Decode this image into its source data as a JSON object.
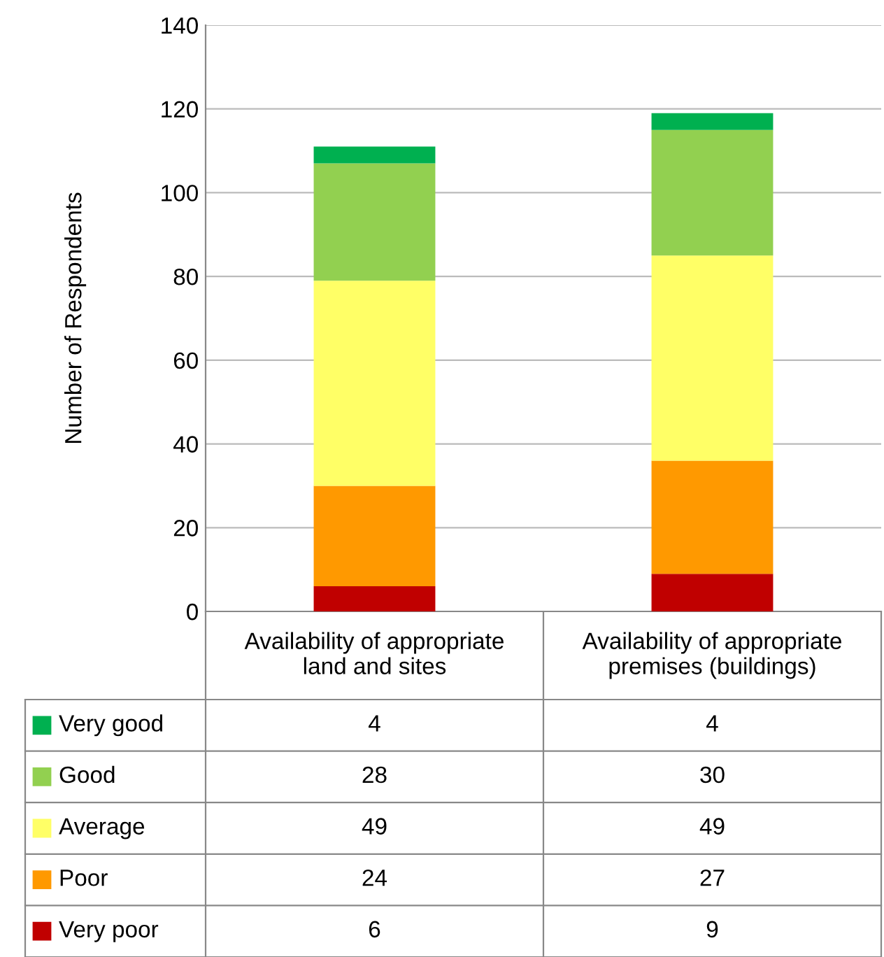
{
  "chart_data": {
    "type": "bar",
    "stacked": true,
    "ylabel": "Number of Respondents",
    "categories": [
      "Availability of appropriate\nland and sites",
      "Availability of appropriate\npremises (buildings)"
    ],
    "series": [
      {
        "name": "Very poor",
        "color": "#c00000",
        "values": [
          6,
          9
        ]
      },
      {
        "name": "Poor",
        "color": "#ff9900",
        "values": [
          24,
          27
        ]
      },
      {
        "name": "Average",
        "color": "#ffff66",
        "values": [
          49,
          49
        ]
      },
      {
        "name": "Good",
        "color": "#92d050",
        "values": [
          28,
          30
        ]
      },
      {
        "name": "Very good",
        "color": "#00b050",
        "values": [
          4,
          4
        ]
      }
    ],
    "ylim": [
      0,
      140
    ],
    "yticks": [
      0,
      20,
      40,
      60,
      80,
      100,
      120,
      140
    ],
    "grid": "y",
    "legend": "bottom",
    "data_labels": true
  }
}
